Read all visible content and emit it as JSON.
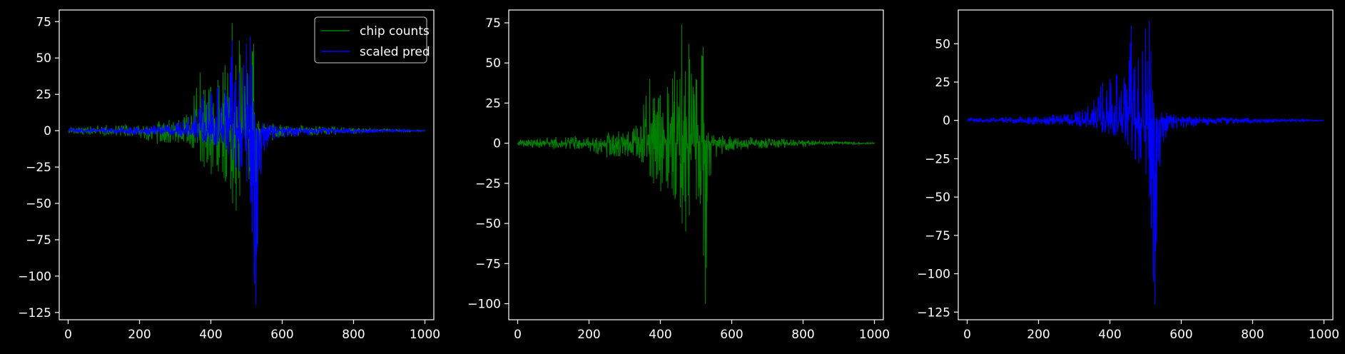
{
  "chart_data": [
    {
      "type": "line",
      "title": "",
      "xlabel": "",
      "ylabel": "",
      "xlim": [
        -25,
        1025
      ],
      "ylim": [
        -130,
        83
      ],
      "xticks": [
        0,
        200,
        400,
        600,
        800,
        1000
      ],
      "yticks": [
        75,
        50,
        25,
        0,
        -25,
        -50,
        -75,
        -100,
        -125
      ],
      "grid": false,
      "legend": "top-right",
      "series": [
        {
          "name": "chip counts",
          "color": "#008000",
          "envelope": {
            "x": [
              0,
              100,
              200,
              260,
              300,
              340,
              370,
              380,
              400,
              420,
              440,
              455,
              460,
              470,
              480,
              500,
              520,
              525,
              540,
              560,
              600,
              650,
              700,
              800,
              900,
              1000
            ],
            "upper": [
              2,
              4,
              5,
              7,
              8,
              12,
              40,
              28,
              30,
              35,
              45,
              40,
              74,
              45,
              62,
              40,
              60,
              15,
              8,
              6,
              4,
              4,
              3,
              2,
              1,
              0.5
            ],
            "lower": [
              -2,
              -4,
              -5,
              -10,
              -8,
              -12,
              -20,
              -25,
              -30,
              -28,
              -35,
              -40,
              -50,
              -55,
              -45,
              -35,
              -70,
              -100,
              -20,
              -8,
              -5,
              -4,
              -3,
              -2,
              -1,
              -0.5
            ]
          }
        },
        {
          "name": "scaled pred",
          "color": "#0000ff",
          "envelope": {
            "x": [
              0,
              100,
              200,
              300,
              330,
              360,
              380,
              400,
              420,
              440,
              460,
              470,
              480,
              500,
              510,
              515,
              520,
              525,
              530,
              540,
              560,
              600,
              700,
              800,
              900,
              1000
            ],
            "upper": [
              2,
              2,
              3,
              5,
              8,
              15,
              25,
              27,
              30,
              28,
              62,
              35,
              40,
              60,
              65,
              45,
              20,
              10,
              8,
              6,
              5,
              3,
              2,
              1.5,
              1,
              0.5
            ],
            "lower": [
              -1,
              -2,
              -3,
              -4,
              -5,
              -6,
              -8,
              -10,
              -12,
              -15,
              -20,
              -25,
              -28,
              -35,
              -50,
              -70,
              -100,
              -120,
              -80,
              -30,
              -10,
              -5,
              -3,
              -2,
              -1,
              -0.5
            ]
          }
        }
      ]
    },
    {
      "type": "line",
      "title": "",
      "xlabel": "",
      "ylabel": "",
      "xlim": [
        -25,
        1025
      ],
      "ylim": [
        -110,
        83
      ],
      "xticks": [
        0,
        200,
        400,
        600,
        800,
        1000
      ],
      "yticks": [
        75,
        50,
        25,
        0,
        -25,
        -50,
        -75,
        -100
      ],
      "grid": false,
      "series": [
        {
          "name": "chip counts",
          "color": "#008000",
          "envelope": {
            "x": [
              0,
              100,
              200,
              260,
              300,
              340,
              370,
              380,
              400,
              420,
              440,
              455,
              460,
              470,
              480,
              500,
              520,
              525,
              540,
              560,
              600,
              650,
              700,
              800,
              900,
              1000
            ],
            "upper": [
              2,
              4,
              5,
              7,
              8,
              12,
              40,
              28,
              30,
              35,
              45,
              40,
              74,
              45,
              62,
              40,
              60,
              15,
              8,
              6,
              4,
              4,
              3,
              2,
              1,
              0.5
            ],
            "lower": [
              -2,
              -4,
              -5,
              -10,
              -8,
              -12,
              -20,
              -25,
              -30,
              -28,
              -35,
              -40,
              -50,
              -55,
              -45,
              -35,
              -70,
              -100,
              -20,
              -8,
              -5,
              -4,
              -3,
              -2,
              -1,
              -0.5
            ]
          }
        }
      ]
    },
    {
      "type": "line",
      "title": "",
      "xlabel": "",
      "ylabel": "",
      "xlim": [
        -25,
        1025
      ],
      "ylim": [
        -130,
        72
      ],
      "xticks": [
        0,
        200,
        400,
        600,
        800,
        1000
      ],
      "yticks": [
        50,
        25,
        0,
        -25,
        -50,
        -75,
        -100,
        -125
      ],
      "grid": false,
      "series": [
        {
          "name": "scaled pred",
          "color": "#0000ff",
          "envelope": {
            "x": [
              0,
              100,
              200,
              300,
              330,
              360,
              380,
              400,
              420,
              440,
              460,
              470,
              480,
              500,
              510,
              515,
              520,
              525,
              530,
              540,
              560,
              600,
              700,
              800,
              900,
              1000
            ],
            "upper": [
              2,
              2,
              3,
              5,
              8,
              15,
              25,
              27,
              30,
              28,
              62,
              35,
              40,
              60,
              65,
              45,
              20,
              10,
              8,
              6,
              5,
              3,
              2,
              1.5,
              1,
              0.5
            ],
            "lower": [
              -1,
              -2,
              -3,
              -4,
              -5,
              -6,
              -8,
              -10,
              -12,
              -15,
              -20,
              -25,
              -28,
              -35,
              -50,
              -70,
              -100,
              -120,
              -80,
              -30,
              -10,
              -5,
              -3,
              -2,
              -1,
              -0.5
            ]
          }
        }
      ]
    }
  ]
}
